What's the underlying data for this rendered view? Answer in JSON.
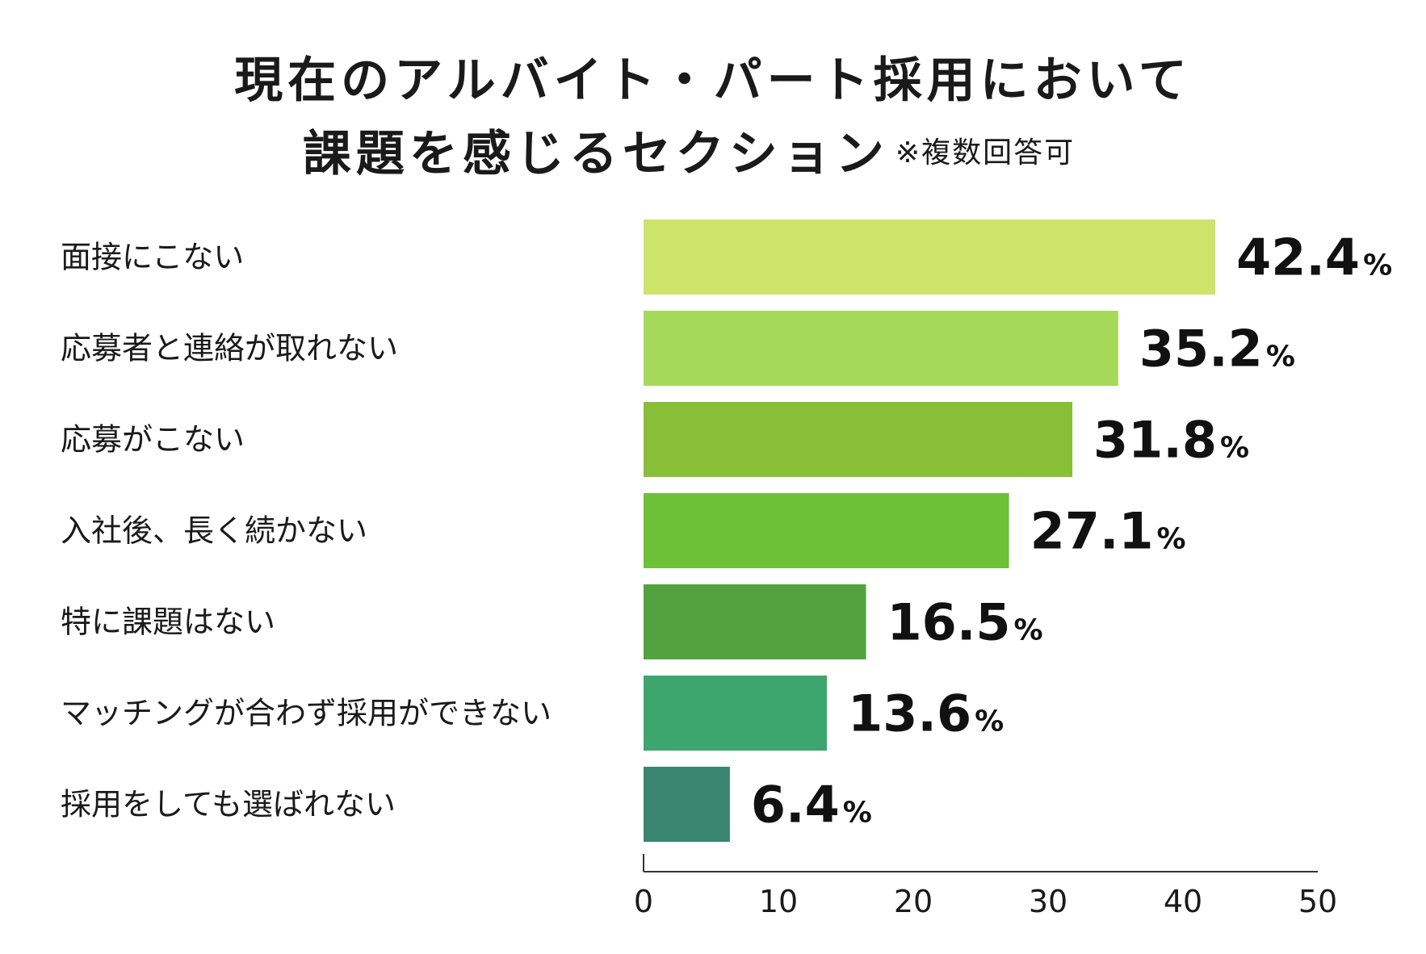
{
  "chart_data": {
    "type": "bar",
    "orientation": "horizontal",
    "title_line1": "現在のアルバイト・パート採用において",
    "title_line2": "課題を感じるセクション",
    "title_note": "※複数回答可",
    "categories": [
      "面接にこない",
      "応募者と連絡が取れない",
      "応募がこない",
      "入社後、長く続かない",
      "特に課題はない",
      "マッチングが合わず採用ができない",
      "採用をしても選ばれない"
    ],
    "values": [
      42.4,
      35.2,
      31.8,
      27.1,
      16.5,
      13.6,
      6.4
    ],
    "value_labels": [
      "42.4",
      "35.2",
      "31.8",
      "27.1",
      "16.5",
      "13.6",
      "6.4"
    ],
    "value_unit": "%",
    "colors": [
      "#cde46a",
      "#a5d95a",
      "#89be38",
      "#6cc137",
      "#52a33f",
      "#3da56e",
      "#3a8570"
    ],
    "xlim": [
      0,
      50
    ],
    "xticks": [
      0,
      10,
      20,
      30,
      40,
      50
    ],
    "xtick_labels": [
      "0",
      "10",
      "20",
      "30",
      "40",
      "50"
    ],
    "grid": false,
    "legend": "none"
  }
}
